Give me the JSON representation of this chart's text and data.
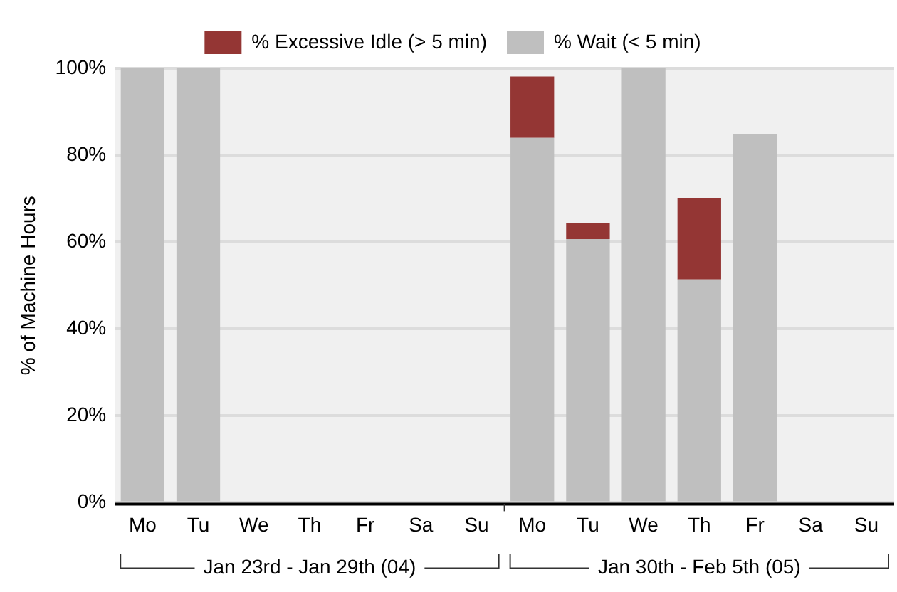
{
  "chart_data": {
    "type": "bar",
    "stacked": true,
    "ylabel": "% of Machine Hours",
    "categories": [
      "Mo",
      "Tu",
      "We",
      "Th",
      "Fr",
      "Sa",
      "Su",
      "Mo",
      "Tu",
      "We",
      "Th",
      "Fr",
      "Sa",
      "Su"
    ],
    "series": [
      {
        "name": "% Wait (< 5 min)",
        "color": "#bfbfbf",
        "values": [
          100,
          100,
          null,
          null,
          null,
          null,
          null,
          84.0,
          60.7,
          100,
          51.4,
          84.9,
          null,
          null
        ]
      },
      {
        "name": "% Excessive Idle (> 5 min)",
        "color": "#943634",
        "values": [
          null,
          null,
          null,
          null,
          null,
          null,
          null,
          14.1,
          3.6,
          null,
          18.8,
          null,
          null,
          null
        ]
      }
    ],
    "ylim": [
      0,
      100
    ],
    "yticks": [
      {
        "value": 0,
        "label": "0%"
      },
      {
        "value": 20,
        "label": "20%"
      },
      {
        "value": 40,
        "label": "40%"
      },
      {
        "value": 60,
        "label": "60%"
      },
      {
        "value": 80,
        "label": "80%"
      },
      {
        "value": 100,
        "label": "100%"
      }
    ],
    "grid": "y",
    "legend": "top",
    "annotations": [
      "Jan 23rd - Jan 29th (04)",
      "Jan 30th - Feb 5th (05)"
    ]
  }
}
